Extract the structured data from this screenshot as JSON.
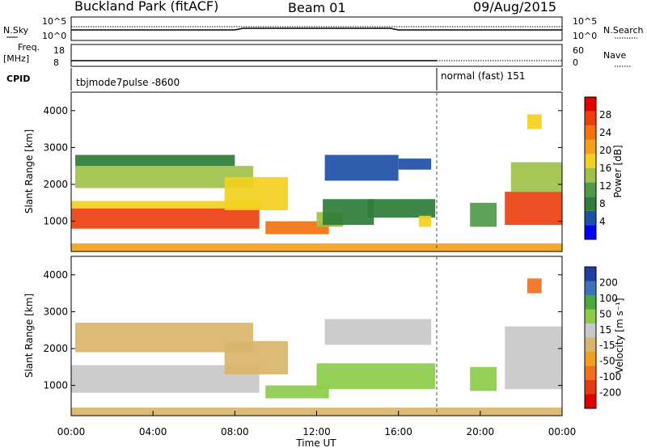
{
  "header": {
    "station": "Buckland Park (fitACF)",
    "beam": "Beam 01",
    "date": "09/Aug/2015"
  },
  "status_panels": {
    "nsky_label": "N.Sky",
    "nsearch_label": "N.Search",
    "noise_ticks": [
      "10^5",
      "10^0"
    ],
    "freq_label": "Freq.",
    "freq_unit": "[MHz]",
    "freq_ticks": [
      "18",
      "8"
    ],
    "nave_ticks": [
      "60",
      "0"
    ],
    "nave_label": "Nave",
    "cpid_label": "CPID",
    "cpid_segments": [
      {
        "name": "tbjmode7pulse -8600",
        "start_hour": 0,
        "end_hour": 18
      },
      {
        "name": "normal (fast) 151",
        "start_hour": 18,
        "end_hour": 24
      }
    ]
  },
  "colors": {
    "power_scale": [
      "#0000ff",
      "#1f4fa8",
      "#2e7d3a",
      "#4f9a48",
      "#9ec14a",
      "#f2d020",
      "#f3a11c",
      "#f2720f",
      "#ec3f10",
      "#e00000"
    ],
    "velocity_scale": [
      "#1d3fa3",
      "#3d72b8",
      "#4aa842",
      "#8ccd4a",
      "#c8c8c8",
      "#d9b56b",
      "#f0a020",
      "#f07020",
      "#e53a12",
      "#e00000"
    ]
  },
  "chart_data": [
    {
      "type": "heatmap",
      "name": "power",
      "xlabel": "",
      "ylabel": "Slant Range [km]",
      "ylim": [
        180,
        4500
      ],
      "xlim": [
        0,
        24
      ],
      "y_ticks": [
        1000,
        2000,
        3000,
        4000
      ],
      "colorbar": {
        "label": "Power [dB]",
        "range": [
          0,
          32
        ],
        "ticks": [
          4,
          8,
          12,
          16,
          20,
          24,
          28
        ]
      },
      "regions": [
        {
          "t0": 0.0,
          "t1": 9.2,
          "r0": 800,
          "r1": 1350,
          "value": 27
        },
        {
          "t0": 0.0,
          "t1": 9.3,
          "r0": 1350,
          "r1": 1550,
          "value": 16
        },
        {
          "t0": 0.2,
          "t1": 8.9,
          "r0": 1900,
          "r1": 2500,
          "value": 15
        },
        {
          "t0": 0.2,
          "t1": 8.0,
          "r0": 2500,
          "r1": 2800,
          "value": 7
        },
        {
          "t0": 7.5,
          "t1": 10.6,
          "r0": 1300,
          "r1": 2200,
          "value": 18
        },
        {
          "t0": 9.5,
          "t1": 12.6,
          "r0": 650,
          "r1": 1000,
          "value": 24
        },
        {
          "t0": 12.0,
          "t1": 13.3,
          "r0": 850,
          "r1": 1250,
          "value": 14
        },
        {
          "t0": 12.3,
          "t1": 14.8,
          "r0": 900,
          "r1": 1600,
          "value": 7
        },
        {
          "t0": 14.5,
          "t1": 17.8,
          "r0": 1100,
          "r1": 1600,
          "value": 8
        },
        {
          "t0": 12.4,
          "t1": 16.0,
          "r0": 2100,
          "r1": 2800,
          "value": 6
        },
        {
          "t0": 16.0,
          "t1": 17.6,
          "r0": 2400,
          "r1": 2700,
          "value": 5
        },
        {
          "t0": 17.0,
          "t1": 17.6,
          "r0": 850,
          "r1": 1150,
          "value": 18
        },
        {
          "t0": 19.5,
          "t1": 20.8,
          "r0": 850,
          "r1": 1500,
          "value": 10
        },
        {
          "t0": 21.2,
          "t1": 24.0,
          "r0": 900,
          "r1": 1800,
          "value": 26
        },
        {
          "t0": 21.5,
          "t1": 24.0,
          "r0": 1800,
          "r1": 2600,
          "value": 14
        },
        {
          "t0": 22.3,
          "t1": 23.0,
          "r0": 3500,
          "r1": 3900,
          "value": 18
        },
        {
          "t0": 0.0,
          "t1": 24.0,
          "r0": 180,
          "r1": 400,
          "value": 20
        }
      ]
    },
    {
      "type": "heatmap",
      "name": "velocity",
      "xlabel": "Time UT",
      "ylabel": "Slant Range [km]",
      "ylim": [
        180,
        4500
      ],
      "xlim": [
        0,
        24
      ],
      "y_ticks": [
        1000,
        2000,
        3000,
        4000
      ],
      "x_ticks": [
        "00:00",
        "04:00",
        "08:00",
        "12:00",
        "16:00",
        "20:00",
        "00:00"
      ],
      "colorbar": {
        "label": "Velocity [m s⁻¹]",
        "range": [
          -250,
          250
        ],
        "ticks": [
          "200",
          "100",
          "50",
          "15",
          "-15",
          "-50",
          "-100",
          "-200"
        ]
      },
      "regions": [
        {
          "t0": 0.0,
          "t1": 9.2,
          "r0": 800,
          "r1": 1550,
          "value": 0
        },
        {
          "t0": 0.2,
          "t1": 8.9,
          "r0": 1900,
          "r1": 2700,
          "value": -20
        },
        {
          "t0": 7.5,
          "t1": 10.6,
          "r0": 1300,
          "r1": 2200,
          "value": -30
        },
        {
          "t0": 9.5,
          "t1": 12.6,
          "r0": 650,
          "r1": 1000,
          "value": 30
        },
        {
          "t0": 12.0,
          "t1": 17.8,
          "r0": 900,
          "r1": 1600,
          "value": 40
        },
        {
          "t0": 12.4,
          "t1": 17.6,
          "r0": 2100,
          "r1": 2800,
          "value": 5
        },
        {
          "t0": 19.5,
          "t1": 20.8,
          "r0": 850,
          "r1": 1500,
          "value": 30
        },
        {
          "t0": 21.2,
          "t1": 24.0,
          "r0": 900,
          "r1": 2600,
          "value": 0
        },
        {
          "t0": 22.3,
          "t1": 23.0,
          "r0": 3500,
          "r1": 3900,
          "value": -180
        },
        {
          "t0": 0.0,
          "t1": 24.0,
          "r0": 180,
          "r1": 400,
          "value": -20
        }
      ]
    }
  ]
}
